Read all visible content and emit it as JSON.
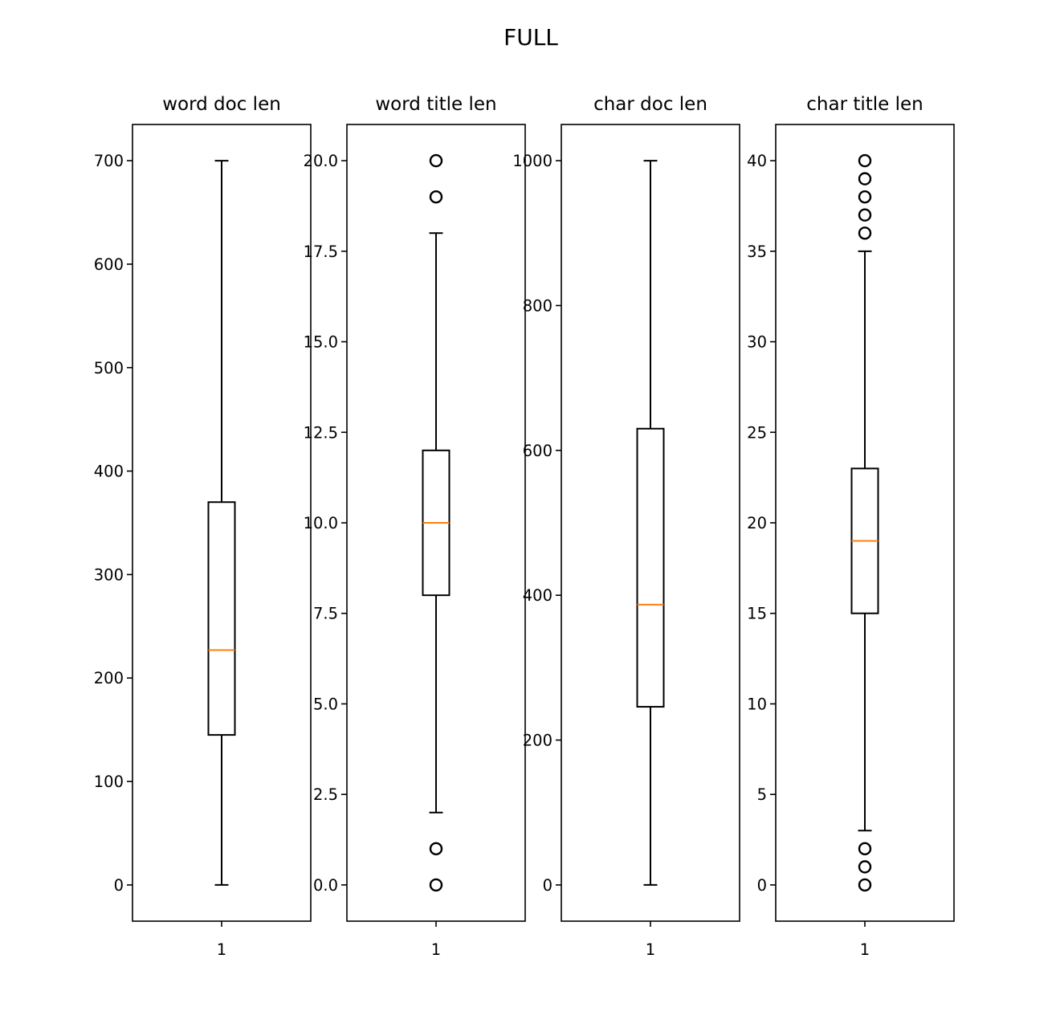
{
  "figure": {
    "suptitle": "FULL"
  },
  "style": {
    "box_color": "#000000",
    "median_color": "#ff7f0e",
    "background": "#ffffff"
  },
  "chart_data": [
    {
      "type": "boxplot",
      "title": "word doc len",
      "xlabel": "",
      "ylabel": "",
      "x_ticks": [
        "1"
      ],
      "ylim": [
        -35,
        735
      ],
      "y_ticks": [
        0,
        100,
        200,
        300,
        400,
        500,
        600,
        700
      ],
      "y_tick_labels": [
        "0",
        "100",
        "200",
        "300",
        "400",
        "500",
        "600",
        "700"
      ],
      "box": {
        "whisker_low": 0,
        "q1": 145,
        "median": 227,
        "q3": 370,
        "whisker_high": 700
      },
      "outliers": []
    },
    {
      "type": "boxplot",
      "title": "word title len",
      "xlabel": "",
      "ylabel": "",
      "x_ticks": [
        "1"
      ],
      "ylim": [
        -1,
        21
      ],
      "y_ticks": [
        0,
        2.5,
        5,
        7.5,
        10,
        12.5,
        15,
        17.5,
        20
      ],
      "y_tick_labels": [
        "0.0",
        "2.5",
        "5.0",
        "7.5",
        "10.0",
        "12.5",
        "15.0",
        "17.5",
        "20.0"
      ],
      "box": {
        "whisker_low": 2,
        "q1": 8,
        "median": 10,
        "q3": 12,
        "whisker_high": 18
      },
      "outliers": [
        0,
        1,
        19,
        20
      ]
    },
    {
      "type": "boxplot",
      "title": "char doc len",
      "xlabel": "",
      "ylabel": "",
      "x_ticks": [
        "1"
      ],
      "ylim": [
        -50,
        1050
      ],
      "y_ticks": [
        0,
        200,
        400,
        600,
        800,
        1000
      ],
      "y_tick_labels": [
        "0",
        "200",
        "400",
        "600",
        "800",
        "1000"
      ],
      "box": {
        "whisker_low": 0,
        "q1": 246,
        "median": 387,
        "q3": 630,
        "whisker_high": 1000
      },
      "outliers": []
    },
    {
      "type": "boxplot",
      "title": "char title len",
      "xlabel": "",
      "ylabel": "",
      "x_ticks": [
        "1"
      ],
      "ylim": [
        -2,
        42
      ],
      "y_ticks": [
        0,
        5,
        10,
        15,
        20,
        25,
        30,
        35,
        40
      ],
      "y_tick_labels": [
        "0",
        "5",
        "10",
        "15",
        "20",
        "25",
        "30",
        "35",
        "40"
      ],
      "box": {
        "whisker_low": 3,
        "q1": 15,
        "median": 19,
        "q3": 23,
        "whisker_high": 35
      },
      "outliers": [
        0,
        1,
        2,
        36,
        37,
        38,
        39,
        40
      ]
    }
  ]
}
